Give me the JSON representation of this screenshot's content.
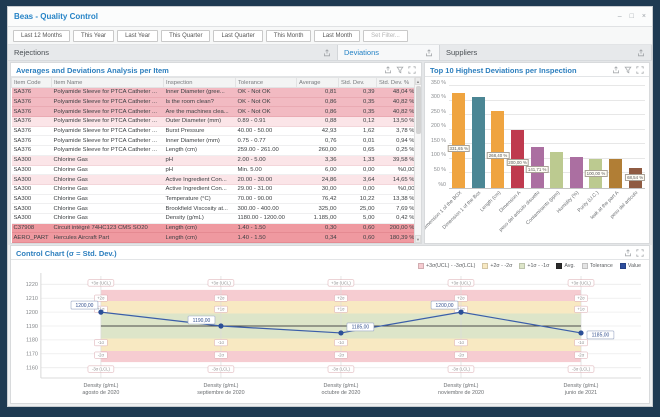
{
  "window": {
    "title": "Beas - Quality Control",
    "controls": {
      "minimize": "–",
      "maximize": "□",
      "close": "×"
    }
  },
  "toolbar": {
    "buttons": [
      {
        "label": "Last 12 Months",
        "enabled": true
      },
      {
        "label": "This Year",
        "enabled": true
      },
      {
        "label": "Last Year",
        "enabled": true
      },
      {
        "label": "This Quarter",
        "enabled": true
      },
      {
        "label": "Last Quarter",
        "enabled": true
      },
      {
        "label": "This Month",
        "enabled": true
      },
      {
        "label": "Last Month",
        "enabled": true
      },
      {
        "label": "Set Filter...",
        "enabled": false
      }
    ]
  },
  "section_headers": [
    {
      "label": "Rejections",
      "active": false
    },
    {
      "label": "Deviations",
      "active": true
    },
    {
      "label": "Suppliers",
      "active": false
    }
  ],
  "table_panel": {
    "title": "Averages and Deviations Analysis per Item",
    "columns": [
      "Item Code",
      "Item Name",
      "Inspection",
      "Tolerance",
      "Average",
      "Std. Dev.",
      "Std. Dev. %"
    ],
    "rows": [
      {
        "cells": [
          "SA376",
          "Polyamide Sleeve for PTCA Catheter ...",
          "Inner Diameter (gree...",
          "OK - Not OK",
          "0,81",
          "0,39",
          "48,04 %"
        ],
        "highlight": "pink"
      },
      {
        "cells": [
          "SA376",
          "Polyamide Sleeve for PTCA Catheter ...",
          "Is the room clean?",
          "OK - Not OK",
          "0,86",
          "0,35",
          "40,82 %"
        ],
        "highlight": "pink"
      },
      {
        "cells": [
          "SA376",
          "Polyamide Sleeve for PTCA Catheter ...",
          "Are the machines clea...",
          "OK - Not OK",
          "0,86",
          "0,35",
          "40,82 %"
        ],
        "highlight": "pink"
      },
      {
        "cells": [
          "SA376",
          "Polyamide Sleeve for PTCA Catheter ...",
          "Outer Diameter (mm)",
          "0.89 - 0.91",
          "0,88",
          "0,12",
          "13,50 %"
        ],
        "highlight": "palepink"
      },
      {
        "cells": [
          "SA376",
          "Polyamide Sleeve for PTCA Catheter ...",
          "Burst Pressure",
          "40.00 - 50.00",
          "42,93",
          "1,62",
          "3,78 %"
        ],
        "highlight": "white"
      },
      {
        "cells": [
          "SA376",
          "Polyamide Sleeve for PTCA Catheter ...",
          "Inner Diameter (mm)",
          "0.75 - 0.77",
          "0,76",
          "0,01",
          "0,94 %"
        ],
        "highlight": "white"
      },
      {
        "cells": [
          "SA376",
          "Polyamide Sleeve for PTCA Catheter ...",
          "Length (cm)",
          "259.00 - 261.00",
          "260,00",
          "0,65",
          "0,25 %"
        ],
        "highlight": "white"
      },
      {
        "cells": [
          "SA300",
          "Chlorine Gas",
          "pH",
          "2.00 - 5.00",
          "3,36",
          "1,33",
          "39,58 %"
        ],
        "highlight": "palepink"
      },
      {
        "cells": [
          "SA300",
          "Chlorine Gas",
          "pH",
          "Min. 5.00",
          "6,00",
          "0,00",
          "%0,00"
        ],
        "highlight": "white"
      },
      {
        "cells": [
          "SA300",
          "Chlorine Gas",
          "Active Ingredient Con...",
          "20.00 - 30.00",
          "24,86",
          "3,64",
          "14,65 %"
        ],
        "highlight": "palepink"
      },
      {
        "cells": [
          "SA300",
          "Chlorine Gas",
          "Active Ingredient Con...",
          "29.00 - 31.00",
          "30,00",
          "0,00",
          "%0,00"
        ],
        "highlight": "white"
      },
      {
        "cells": [
          "SA300",
          "Chlorine Gas",
          "Temperature (°C)",
          "70.00 - 90.00",
          "76,42",
          "10,22",
          "13,38 %"
        ],
        "highlight": "white"
      },
      {
        "cells": [
          "SA300",
          "Chlorine Gas",
          "Brookfield Viscosity at...",
          "300.00 - 400.00",
          "325,00",
          "25,00",
          "7,69 %"
        ],
        "highlight": "white"
      },
      {
        "cells": [
          "SA300",
          "Chlorine Gas",
          "Density (g/mL)",
          "1180.00 - 1200.00",
          "1.185,00",
          "5,00",
          "0,42 %"
        ],
        "highlight": "white"
      },
      {
        "cells": [
          "C37908",
          "Circuit intégré 74HC123 CMS SO20",
          "Length (cm)",
          "1.40 - 1.50",
          "0,30",
          "0,60",
          "200,00 %"
        ],
        "highlight": "red"
      },
      {
        "cells": [
          "AERO_PART",
          "Hercules Aircraft Part",
          "Length (cm)",
          "1.40 - 1.50",
          "0,34",
          "0,60",
          "180,39 %"
        ],
        "highlight": "red"
      }
    ]
  },
  "chart_data": [
    {
      "type": "bar",
      "title": "Top 10 Highest Deviations per Inspection",
      "categories": [
        "Dimension 1 of the BOX",
        "Dimension 1 of the Box",
        "Length (cm)",
        "Dimension A",
        "peso del articulo disuelto",
        "Contaminants (ppm)",
        "Humidity (%)",
        "Purity (U.C.)",
        "leak at the part A",
        "peso del articulo"
      ],
      "values": [
        331.65,
        315,
        268.4,
        200,
        141.71,
        126,
        108,
        100,
        100,
        68.54
      ],
      "labels": [
        "331,65 %",
        null,
        "268,40 %",
        "200,00 %",
        "141,71 %",
        null,
        null,
        "100,00 %",
        null,
        "68,54 %"
      ],
      "colors": [
        "#efa440",
        "#4b8694",
        "#efa440",
        "#bf3a4e",
        "#ab6fa1",
        "#bcca90",
        "#ab6fa1",
        "#bcca90",
        "#b17e35",
        "#8f5b42"
      ],
      "ylim": [
        0,
        365
      ],
      "yticks": [
        {
          "v": 350,
          "label": "350 %"
        },
        {
          "v": 300,
          "label": "300 %"
        },
        {
          "v": 250,
          "label": "250 %"
        },
        {
          "v": 200,
          "label": "200 %"
        },
        {
          "v": 150,
          "label": "150 %"
        },
        {
          "v": 100,
          "label": "100 %"
        },
        {
          "v": 50,
          "label": "50 %"
        },
        {
          "v": 0,
          "label": "%0"
        }
      ],
      "legend_position": "none",
      "grid": true
    },
    {
      "type": "line",
      "title": "Control Chart (σ = Std. Dev.)",
      "categories": [
        [
          "Density (g/mL)",
          "agosto de 2020"
        ],
        [
          "Density (g/mL)",
          "septiembre de 2020"
        ],
        [
          "Density (g/mL)",
          "octubre de 2020"
        ],
        [
          "Density (g/mL)",
          "noviembre de 2020"
        ],
        [
          "Density (g/mL)",
          "junio de 2021"
        ]
      ],
      "values": [
        1200,
        1190,
        1185,
        1200,
        1185
      ],
      "point_labels": [
        "1200,00",
        "1190,00",
        "1185,00",
        "1200,00",
        "1185,00"
      ],
      "average": 1190,
      "bands": {
        "sigma1": [
          1181,
          1199
        ],
        "sigma2": [
          1172,
          1208
        ],
        "sigma3": [
          1164,
          1216
        ]
      },
      "yticks": [
        1220,
        1210,
        1200,
        1190,
        1180,
        1170,
        1160
      ],
      "ylim": [
        1154,
        1226
      ],
      "sigma_labels": [
        {
          "text": "+3σ (UCL)",
          "value": 1221
        },
        {
          "text": "+2σ",
          "value": 1210
        },
        {
          "text": "+1σ",
          "value": 1202
        },
        {
          "text": "-1σ",
          "value": 1178
        },
        {
          "text": "-2σ",
          "value": 1169
        },
        {
          "text": "-3σ (LCL)",
          "value": 1159
        }
      ],
      "legend": [
        {
          "label": "+3σ(UCL) - -3σ(LCL)",
          "color": "#f6ccd1"
        },
        {
          "label": "+2σ - -2σ",
          "color": "#f8e9c2"
        },
        {
          "label": "+1σ - -1σ",
          "color": "#dde5c9"
        },
        {
          "label": "Avg.",
          "color": "#2b2b2b"
        },
        {
          "label": "Tolerance",
          "color": "#e4e4e4"
        },
        {
          "label": "Value",
          "color": "#2e4e9e"
        }
      ],
      "colors": {
        "band3": "#f6ccd1",
        "band2": "#f8e9c2",
        "band1": "#dde5c9",
        "avg_line": "#4a4a4a",
        "value_line": "#3b5ea9",
        "point": "#2b4f97"
      },
      "legend_position": "top-right",
      "grid": true
    }
  ]
}
